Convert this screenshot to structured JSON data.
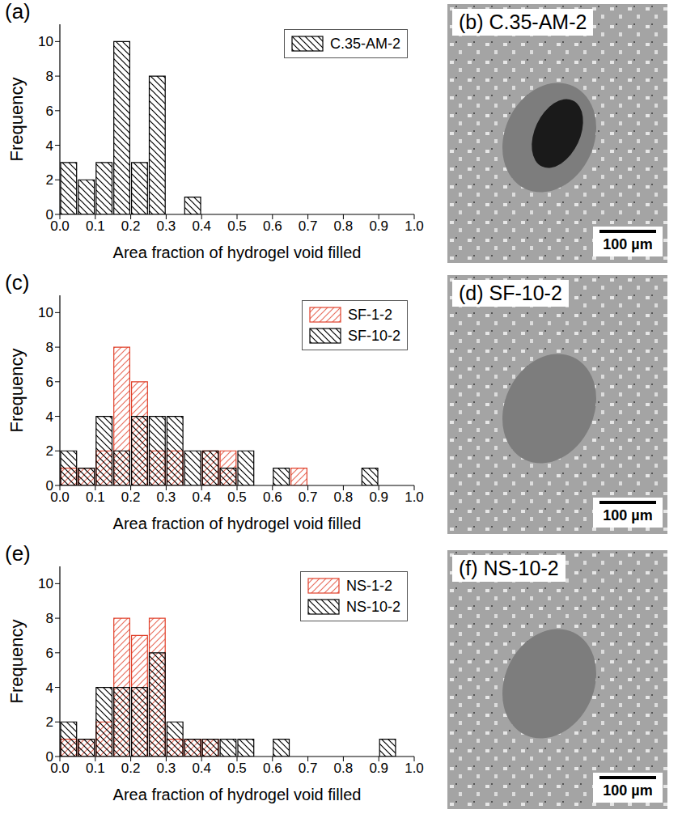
{
  "chart_data": [
    {
      "type": "histogram",
      "title": "(a)",
      "xlabel": "Area fraction of hydrogel void filled",
      "ylabel": "Frequency",
      "bins": [
        0,
        0.05,
        0.1,
        0.15,
        0.2,
        0.25,
        0.3,
        0.35,
        0.4,
        0.45,
        0.5,
        0.55,
        0.6,
        0.65,
        0.7,
        0.75,
        0.8,
        0.85,
        0.9,
        0.95,
        1.0
      ],
      "series": [
        {
          "name": "C.35-AM-2",
          "color": "#000000",
          "values": [
            3,
            2,
            3,
            10,
            3,
            8,
            0,
            1,
            0,
            0,
            0,
            0,
            0,
            0,
            0,
            0,
            0,
            0,
            0,
            0
          ]
        }
      ],
      "xlim": [
        0,
        1
      ],
      "ylim": [
        0,
        11
      ],
      "xticks": [
        {
          "value": 0,
          "label": "0.0"
        },
        0.1,
        0.2,
        0.3,
        0.4,
        0.5,
        0.6,
        0.7,
        0.8,
        0.9,
        {
          "value": 1,
          "label": "1.0"
        }
      ],
      "yticks": [
        0,
        2,
        4,
        6,
        8,
        10
      ],
      "legend": "upper right"
    },
    {
      "type": "histogram",
      "title": "(c)",
      "xlabel": "Area fraction of hydrogel void filled",
      "ylabel": "Frequency",
      "bins": [
        0,
        0.05,
        0.1,
        0.15,
        0.2,
        0.25,
        0.3,
        0.35,
        0.4,
        0.45,
        0.5,
        0.55,
        0.6,
        0.65,
        0.7,
        0.75,
        0.8,
        0.85,
        0.9,
        0.95,
        1.0
      ],
      "series": [
        {
          "name": "SF-1-2",
          "color": "#e0402a",
          "values": [
            1,
            1,
            2,
            8,
            6,
            2,
            2,
            0,
            2,
            2,
            0,
            0,
            0,
            1,
            0,
            0,
            0,
            0,
            0,
            0
          ]
        },
        {
          "name": "SF-10-2",
          "color": "#000000",
          "values": [
            2,
            1,
            4,
            2,
            4,
            4,
            4,
            2,
            2,
            1,
            2,
            0,
            1,
            0,
            0,
            0,
            0,
            1,
            0,
            0
          ]
        }
      ],
      "xlim": [
        0,
        1
      ],
      "ylim": [
        0,
        11
      ],
      "xticks": [
        {
          "value": 0,
          "label": "0.0"
        },
        0.1,
        0.2,
        0.3,
        0.4,
        0.5,
        0.6,
        0.7,
        0.8,
        0.9,
        {
          "value": 1,
          "label": "1.0"
        }
      ],
      "yticks": [
        0,
        2,
        4,
        6,
        8,
        10
      ],
      "legend": "upper right"
    },
    {
      "type": "histogram",
      "title": "(e)",
      "xlabel": "Area fraction of hydrogel void filled",
      "ylabel": "Frequency",
      "bins": [
        0,
        0.05,
        0.1,
        0.15,
        0.2,
        0.25,
        0.3,
        0.35,
        0.4,
        0.45,
        0.5,
        0.55,
        0.6,
        0.65,
        0.7,
        0.75,
        0.8,
        0.85,
        0.9,
        0.95,
        1.0
      ],
      "series": [
        {
          "name": "NS-1-2",
          "color": "#e0402a",
          "values": [
            1,
            1,
            2,
            8,
            7,
            8,
            1,
            1,
            1,
            0,
            0,
            0,
            0,
            0,
            0,
            0,
            0,
            0,
            0,
            0
          ]
        },
        {
          "name": "NS-10-2",
          "color": "#000000",
          "values": [
            2,
            1,
            4,
            4,
            4,
            6,
            2,
            1,
            1,
            1,
            1,
            0,
            1,
            0,
            0,
            0,
            0,
            0,
            1,
            0
          ]
        }
      ],
      "xlim": [
        0,
        1
      ],
      "ylim": [
        0,
        11
      ],
      "xticks": [
        {
          "value": 0,
          "label": "0.0"
        },
        0.1,
        0.2,
        0.3,
        0.4,
        0.5,
        0.6,
        0.7,
        0.8,
        0.9,
        {
          "value": 1,
          "label": "1.0"
        }
      ],
      "yticks": [
        0,
        2,
        4,
        6,
        8,
        10
      ],
      "legend": "upper right"
    }
  ],
  "images": [
    {
      "label": "(b) C.35-AM-2",
      "scale_bar": "100 µm"
    },
    {
      "label": "(d) SF-10-2",
      "scale_bar": "100 µm"
    },
    {
      "label": "(f) NS-10-2",
      "scale_bar": "100 µm"
    }
  ]
}
